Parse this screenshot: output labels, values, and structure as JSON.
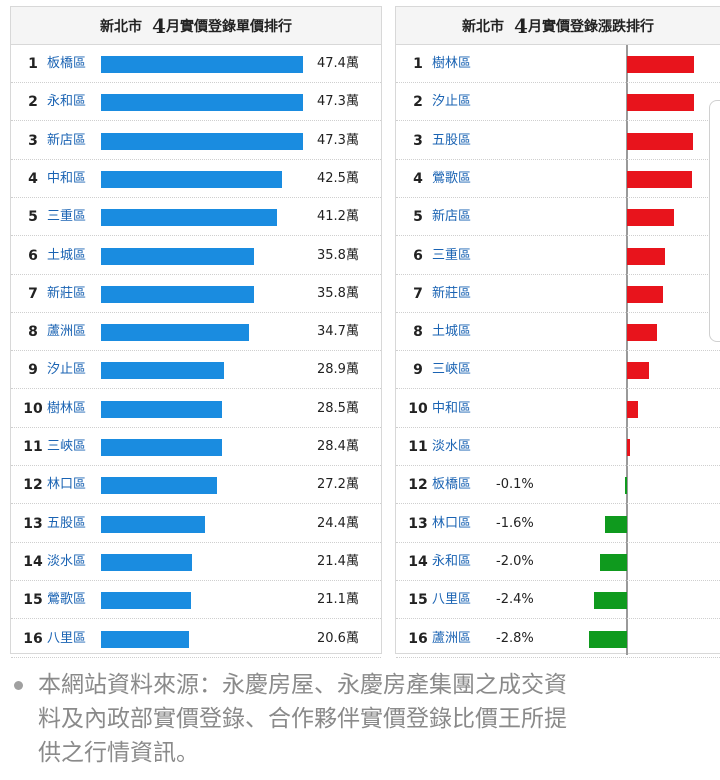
{
  "left_panel": {
    "city": "新北市",
    "month": "4",
    "title_rest": "月實價登錄單價排行",
    "rows": [
      {
        "rank": "1",
        "district": "板橋區",
        "price": "47.4萬",
        "value": 47.4
      },
      {
        "rank": "2",
        "district": "永和區",
        "price": "47.3萬",
        "value": 47.3
      },
      {
        "rank": "3",
        "district": "新店區",
        "price": "47.3萬",
        "value": 47.3
      },
      {
        "rank": "4",
        "district": "中和區",
        "price": "42.5萬",
        "value": 42.5
      },
      {
        "rank": "5",
        "district": "三重區",
        "price": "41.2萬",
        "value": 41.2
      },
      {
        "rank": "6",
        "district": "土城區",
        "price": "35.8萬",
        "value": 35.8
      },
      {
        "rank": "7",
        "district": "新莊區",
        "price": "35.8萬",
        "value": 35.8
      },
      {
        "rank": "8",
        "district": "蘆洲區",
        "price": "34.7萬",
        "value": 34.7
      },
      {
        "rank": "9",
        "district": "汐止區",
        "price": "28.9萬",
        "value": 28.9
      },
      {
        "rank": "10",
        "district": "樹林區",
        "price": "28.5萬",
        "value": 28.5
      },
      {
        "rank": "11",
        "district": "三峽區",
        "price": "28.4萬",
        "value": 28.4
      },
      {
        "rank": "12",
        "district": "林口區",
        "price": "27.2萬",
        "value": 27.2
      },
      {
        "rank": "13",
        "district": "五股區",
        "price": "24.4萬",
        "value": 24.4
      },
      {
        "rank": "14",
        "district": "淡水區",
        "price": "21.4萬",
        "value": 21.4
      },
      {
        "rank": "15",
        "district": "鶯歌區",
        "price": "21.1萬",
        "value": 21.1
      },
      {
        "rank": "16",
        "district": "八里區",
        "price": "20.6萬",
        "value": 20.6
      }
    ]
  },
  "right_panel": {
    "city": "新北市",
    "month": "4",
    "title_rest": "月實價登錄漲跌排行",
    "rows": [
      {
        "rank": "1",
        "district": "樹林區",
        "change_label": "",
        "change": 0.95
      },
      {
        "rank": "2",
        "district": "汐止區",
        "change_label": "",
        "change": 0.95
      },
      {
        "rank": "3",
        "district": "五股區",
        "change_label": "",
        "change": 0.94
      },
      {
        "rank": "4",
        "district": "鶯歌區",
        "change_label": "",
        "change": 0.92
      },
      {
        "rank": "5",
        "district": "新店區",
        "change_label": "",
        "change": 0.66
      },
      {
        "rank": "6",
        "district": "三重區",
        "change_label": "",
        "change": 0.54
      },
      {
        "rank": "7",
        "district": "新莊區",
        "change_label": "",
        "change": 0.51
      },
      {
        "rank": "8",
        "district": "土城區",
        "change_label": "",
        "change": 0.43
      },
      {
        "rank": "9",
        "district": "三峽區",
        "change_label": "",
        "change": 0.31
      },
      {
        "rank": "10",
        "district": "中和區",
        "change_label": "",
        "change": 0.16
      },
      {
        "rank": "11",
        "district": "淡水區",
        "change_label": "",
        "change": 0.04
      },
      {
        "rank": "12",
        "district": "板橋區",
        "change_label": "-0.1%",
        "change": -0.1
      },
      {
        "rank": "13",
        "district": "林口區",
        "change_label": "-1.6%",
        "change": -1.6
      },
      {
        "rank": "14",
        "district": "永和區",
        "change_label": "-2.0%",
        "change": -2.0
      },
      {
        "rank": "15",
        "district": "八里區",
        "change_label": "-2.4%",
        "change": -2.4
      },
      {
        "rank": "16",
        "district": "蘆洲區",
        "change_label": "-2.8%",
        "change": -2.8
      }
    ]
  },
  "footnote": {
    "line1": "本網站資料來源：永慶房屋、永慶房產集團之成交資",
    "line2": "料及內政部實價登錄、合作夥伴實價登錄比價王所提",
    "line3": "供之行情資訊。"
  },
  "colors": {
    "price_bar": "#1a8ce0",
    "rise_bar": "#e8141c",
    "fall_bar": "#0f9a1e",
    "district_link": "#1a63b3"
  },
  "chart_data": [
    {
      "type": "bar",
      "title": "新北市 4月實價登錄單價排行",
      "categories": [
        "板橋區",
        "永和區",
        "新店區",
        "中和區",
        "三重區",
        "土城區",
        "新莊區",
        "蘆洲區",
        "汐止區",
        "樹林區",
        "三峽區",
        "林口區",
        "五股區",
        "淡水區",
        "鶯歌區",
        "八里區"
      ],
      "values": [
        47.4,
        47.3,
        47.3,
        42.5,
        41.2,
        35.8,
        35.8,
        34.7,
        28.9,
        28.5,
        28.4,
        27.2,
        24.4,
        21.4,
        21.1,
        20.6
      ],
      "unit": "萬"
    },
    {
      "type": "bar",
      "title": "新北市 4月實價登錄漲跌排行",
      "categories": [
        "樹林區",
        "汐止區",
        "五股區",
        "鶯歌區",
        "新店區",
        "三重區",
        "新莊區",
        "土城區",
        "三峽區",
        "中和區",
        "淡水區",
        "板橋區",
        "林口區",
        "永和區",
        "八里區",
        "蘆洲區"
      ],
      "values": [
        0.95,
        0.95,
        0.94,
        0.92,
        0.66,
        0.54,
        0.51,
        0.43,
        0.31,
        0.16,
        0.04,
        -0.1,
        -1.6,
        -2.0,
        -2.4,
        -2.8
      ],
      "unit": "%"
    }
  ]
}
